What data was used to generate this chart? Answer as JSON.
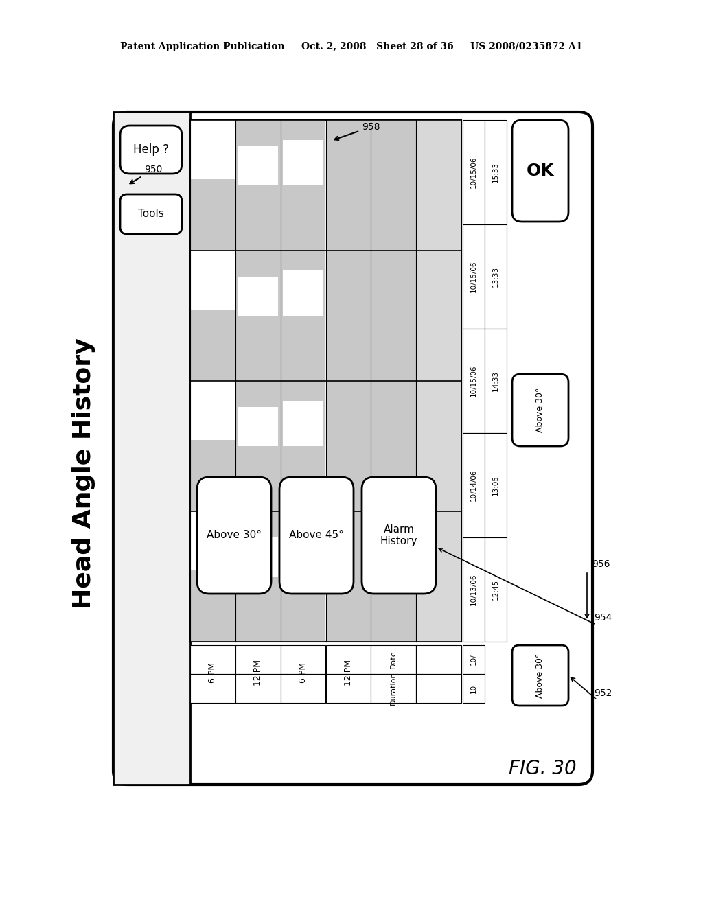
{
  "title": "Head Angle History",
  "patent_line": "Patent Application Publication     Oct. 2, 2008   Sheet 28 of 36     US 2008/0235872 A1",
  "fig_label": "FIG. 30",
  "background_color": "#ffffff",
  "dates": [
    "10/15/06",
    "10/15/06",
    "10/15/06",
    "10/14/06",
    "10/13/06"
  ],
  "times": [
    "15:33",
    "13:33",
    "14:33",
    "13:05",
    "12:45"
  ],
  "row_labels": [
    "6 PM",
    "12 PM",
    "6 PM",
    "12 PM"
  ],
  "bottom_date": "10/",
  "bottom_duration": "10",
  "ref_labels": [
    "950",
    "952",
    "954",
    "956",
    "958"
  ]
}
